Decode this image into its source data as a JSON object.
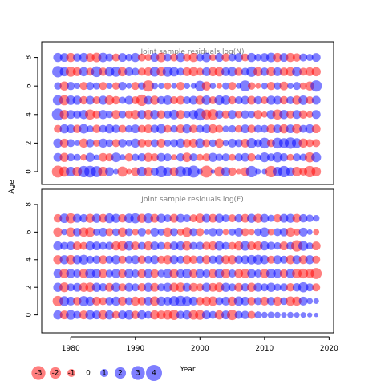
{
  "chart_data": {
    "type": "scatter",
    "subtype": "bubble-residuals",
    "xlabel": "Year",
    "ylabel": "Age",
    "x_ticks": [
      1980,
      1990,
      2000,
      2010,
      2020
    ],
    "y_ticks": [
      0,
      2,
      4,
      6,
      8
    ],
    "xlim": [
      1975.5,
      2020.7
    ],
    "colors": {
      "positive": "#0000ff",
      "negative": "#ff0000",
      "opacity": 0.5
    },
    "legend": {
      "placement": "bottom-left",
      "values": [
        -3,
        -2,
        -1,
        0,
        1,
        2,
        3,
        4
      ],
      "labels": [
        "-3",
        "-2",
        "-1",
        "0",
        "1",
        "2",
        "3",
        "4"
      ]
    },
    "panels": [
      {
        "title": "Joint sample residuals log(N)",
        "ylim": [
          -0.9,
          9.1
        ],
        "years": [
          1978,
          2018
        ],
        "ages": [
          0,
          8
        ],
        "rows": [
          [
            -2.2,
            -1.6,
            1.5,
            -1.4,
            2.0,
            2.1,
            1.9,
            -1.5,
            1.2,
            0.5,
            -1.6,
            -0.5,
            -1.2,
            1.5,
            -1.3,
            1.0,
            2.0,
            1.3,
            -1.2,
            1.8,
            1.4,
            2.2,
            0.5,
            -2.2,
            0.3,
            -1.6,
            1.3,
            -1.1,
            -0.5,
            -1.2,
            2.0,
            0.5,
            0.5,
            -2.0,
            1.4,
            2.0,
            1.2,
            -1.4,
            -1.0,
            -2.0,
            -1.4
          ],
          [
            1.2,
            -1.3,
            1.0,
            0.8,
            -0.7,
            1.3,
            0.5,
            -1.2,
            -1.0,
            1.4,
            0.6,
            -1.1,
            0.9,
            1.1,
            -1.3,
            -1.0,
            1.2,
            1.0,
            -0.6,
            1.1,
            -1.4,
            1.0,
            -0.8,
            -1.0,
            1.3,
            0.9,
            1.0,
            -0.8,
            1.0,
            1.2,
            -1.1,
            0.6,
            1.5,
            1.0,
            1.6,
            1.1,
            -0.8,
            1.0,
            0.9,
            -1.6,
            1.5
          ],
          [
            1.3,
            -1.2,
            1.0,
            0.5,
            -1.3,
            1.1,
            -0.8,
            1.3,
            0.9,
            -1.0,
            1.1,
            0.7,
            1.3,
            -1.1,
            -0.9,
            1.0,
            -1.2,
            0.8,
            1.0,
            1.3,
            -1.1,
            -1.2,
            1.4,
            -1.0,
            0.9,
            -1.3,
            0.6,
            1.2,
            1.0,
            -1.2,
            1.6,
            1.0,
            1.8,
            -1.0,
            1.8,
            1.5,
            2.0,
            1.5,
            -1.3,
            -1.0,
            -1.0
          ],
          [
            -1.0,
            1.3,
            1.2,
            -1.1,
            1.4,
            0.8,
            -1.1,
            1.0,
            1.3,
            1.1,
            -1.0,
            0.9,
            1.2,
            -1.0,
            -1.2,
            1.1,
            1.4,
            -1.0,
            0.9,
            -1.2,
            1.3,
            -1.1,
            1.0,
            1.2,
            -1.3,
            -1.0,
            0.7,
            0.9,
            -0.9,
            1.2,
            -1.1,
            1.0,
            1.0,
            -1.2,
            1.2,
            -1.3,
            1.2,
            -1.4,
            1.0,
            1.3,
            -1.2
          ],
          [
            2.2,
            -1.3,
            1.2,
            1.0,
            1.3,
            -1.6,
            -1.0,
            1.3,
            0.8,
            -1.2,
            0.9,
            -1.0,
            -1.3,
            1.2,
            -1.4,
            1.3,
            -1.1,
            1.0,
            1.4,
            -1.2,
            0.8,
            1.3,
            2.2,
            -1.5,
            -1.8,
            1.1,
            -1.0,
            1.2,
            -0.9,
            1.1,
            0.8,
            -1.2,
            -0.6,
            1.2,
            -1.6,
            1.3,
            -1.0,
            1.2,
            -1.1,
            -0.7,
            1.2
          ],
          [
            1.6,
            -1.6,
            1.4,
            1.3,
            -1.1,
            1.2,
            -1.0,
            1.3,
            -1.4,
            -1.1,
            0.8,
            1.2,
            -1.0,
            -2.0,
            1.2,
            -1.3,
            1.1,
            1.4,
            -1.0,
            -1.2,
            1.0,
            1.2,
            -1.3,
            1.4,
            -1.0,
            1.5,
            1.4,
            -1.1,
            1.0,
            1.2,
            -1.2,
            1.1,
            -1.0,
            1.3,
            1.2,
            -1.1,
            1.0,
            -1.3,
            1.4,
            -1.0,
            1.2
          ],
          [
            0.9,
            -1.3,
            1.1,
            0.6,
            -1.0,
            1.0,
            0.8,
            -1.0,
            0.6,
            -0.9,
            1.1,
            0.5,
            -1.0,
            0.9,
            -2.0,
            0.7,
            0.6,
            -0.8,
            0.5,
            -1.1,
            0.6,
            0.5,
            1.7,
            -1.3,
            0.6,
            -0.5,
            0.8,
            -1.0,
            0.5,
            1.9,
            -0.9,
            -0.5,
            0.7,
            -1.1,
            0.9,
            -1.2,
            0.6,
            1.0,
            -0.8,
            -1.3,
            2.0
          ],
          [
            2.0,
            1.3,
            -1.6,
            -1.2,
            1.3,
            -1.0,
            1.8,
            -1.1,
            1.4,
            1.6,
            -1.3,
            1.2,
            1.0,
            -1.0,
            -1.2,
            1.5,
            -1.3,
            1.6,
            1.4,
            1.0,
            -1.2,
            -1.3,
            -1.0,
            1.2,
            -1.3,
            -1.4,
            1.2,
            1.4,
            -1.1,
            1.0,
            1.7,
            -1.3,
            1.1,
            -1.3,
            1.2,
            -1.1,
            -1.3,
            1.4,
            -1.0,
            -1.2,
            -1.3
          ],
          [
            1.3,
            1.2,
            -1.3,
            1.1,
            1.3,
            -1.2,
            -1.4,
            1.4,
            1.0,
            -1.0,
            1.2,
            0.9,
            1.3,
            -1.0,
            -0.8,
            1.2,
            -1.4,
            1.0,
            -1.0,
            1.3,
            -1.0,
            -1.3,
            1.0,
            1.4,
            -0.8,
            1.2,
            -1.1,
            1.0,
            1.2,
            -1.0,
            1.3,
            0.9,
            1.2,
            1.4,
            -1.3,
            1.2,
            -1.3,
            -1.1,
            1.0,
            0.8,
            1.2
          ]
        ]
      },
      {
        "title": "Joint sample residuals log(F)",
        "ylim": [
          -1.3,
          9.1
        ],
        "years": [
          1978,
          2018
        ],
        "ages": [
          0,
          7
        ],
        "rows": [
          [
            1.3,
            -1.2,
            1.5,
            1.0,
            -1.2,
            1.4,
            1.2,
            -1.4,
            1.3,
            -1.0,
            1.2,
            1.4,
            -1.1,
            1.3,
            1.0,
            -1.3,
            -1.2,
            -1.4,
            -1.6,
            1.1,
            1.3,
            -1.4,
            -1.5,
            1.2,
            1.0,
            -1.3,
            1.2,
            -1.7,
            1.0,
            1.1,
            -1.0,
            0.8,
            0.6,
            0.7,
            0.6,
            0.5,
            0.6,
            0.5,
            0.5,
            0.4,
            0.3
          ],
          [
            -1.7,
            1.5,
            1.2,
            -1.1,
            1.6,
            1.3,
            -1.2,
            -1.0,
            1.1,
            1.3,
            -1.2,
            1.0,
            -1.3,
            -1.1,
            1.2,
            -1.4,
            1.3,
            1.2,
            1.6,
            1.8,
            1.5,
            1.2,
            -1.1,
            -1.3,
            -1.4,
            1.0,
            1.2,
            -1.3,
            1.4,
            1.2,
            -1.1,
            1.0,
            -1.2,
            1.1,
            -1.3,
            0.9,
            -1.4,
            -1.3,
            1.2,
            0.6,
            0.5
          ],
          [
            1.3,
            -1.5,
            1.0,
            1.2,
            -1.3,
            -1.4,
            1.3,
            1.1,
            -1.2,
            1.3,
            -1.0,
            1.2,
            1.0,
            -1.1,
            1.3,
            -1.2,
            1.0,
            1.3,
            -1.3,
            -1.4,
            1.2,
            -1.2,
            -1.0,
            1.3,
            -1.2,
            -1.4,
            1.3,
            1.0,
            -1.2,
            1.1,
            -1.3,
            1.2,
            1.0,
            1.3,
            0.9,
            1.0,
            -1.1,
            1.1,
            1.6,
            1.0,
            -1.0
          ],
          [
            1.2,
            -1.4,
            1.3,
            1.0,
            -1.3,
            1.5,
            1.3,
            -1.2,
            0.9,
            1.3,
            -1.1,
            1.3,
            1.0,
            -1.2,
            1.2,
            -1.1,
            0.9,
            1.3,
            -1.3,
            1.1,
            1.4,
            -1.1,
            1.2,
            1.0,
            -1.2,
            1.4,
            -1.3,
            1.0,
            -1.2,
            -1.4,
            1.2,
            1.0,
            -1.3,
            1.4,
            1.2,
            -1.1,
            1.3,
            -1.4,
            -1.5,
            -1.2,
            -1.9
          ],
          [
            -1.3,
            1.3,
            -1.4,
            1.3,
            1.5,
            1.0,
            1.1,
            -1.2,
            1.0,
            1.3,
            -1.0,
            1.0,
            1.2,
            -1.1,
            1.0,
            1.2,
            -1.0,
            -1.3,
            1.2,
            1.0,
            -1.2,
            -1.1,
            1.0,
            -1.2,
            1.1,
            1.3,
            -1.2,
            -1.3,
            1.1,
            1.2,
            1.4,
            1.5,
            1.3,
            -1.0,
            1.2,
            1.0,
            -1.3,
            1.2,
            -1.2,
            1.3,
            -1.0
          ],
          [
            1.3,
            1.0,
            1.2,
            -1.2,
            -1.0,
            1.3,
            1.2,
            1.0,
            1.1,
            -1.3,
            -1.6,
            1.4,
            -1.2,
            1.0,
            -1.3,
            1.2,
            1.0,
            -1.0,
            1.2,
            1.3,
            -1.4,
            1.0,
            1.1,
            -1.1,
            -1.3,
            1.4,
            1.0,
            -1.0,
            -1.3,
            1.5,
            -1.2,
            -1.3,
            1.3,
            1.1,
            0.9,
            -1.2,
            1.0,
            -2.0,
            1.5,
            0.8,
            -1.2
          ],
          [
            -1.3,
            0.6,
            -1.4,
            1.1,
            -1.4,
            -1.5,
            0.8,
            1.2,
            -1.0,
            0.9,
            -1.3,
            1.0,
            -0.7,
            1.1,
            -0.5,
            1.2,
            0.8,
            -1.3,
            1.0,
            -0.8,
            -1.5,
            1.0,
            -1.0,
            0.5,
            1.1,
            0.9,
            -0.6,
            0.8,
            1.2,
            -1.0,
            -0.6,
            0.9,
            1.4,
            -0.7,
            1.0,
            1.1,
            -1.3,
            -0.8,
            1.2,
            0.5,
            -0.6
          ],
          [
            -1.1,
            1.4,
            -1.6,
            1.2,
            1.1,
            -1.3,
            1.3,
            -1.2,
            1.5,
            1.3,
            -1.1,
            1.4,
            1.6,
            -1.3,
            1.5,
            -1.2,
            1.3,
            1.0,
            -1.2,
            1.2,
            1.0,
            -1.0,
            -1.4,
            1.2,
            -1.2,
            1.3,
            1.0,
            -1.0,
            1.1,
            -1.2,
            1.3,
            -1.3,
            1.2,
            0.8,
            -1.1,
            1.2,
            1.3,
            -1.2,
            1.1,
            0.9,
            0.7
          ]
        ]
      }
    ]
  }
}
